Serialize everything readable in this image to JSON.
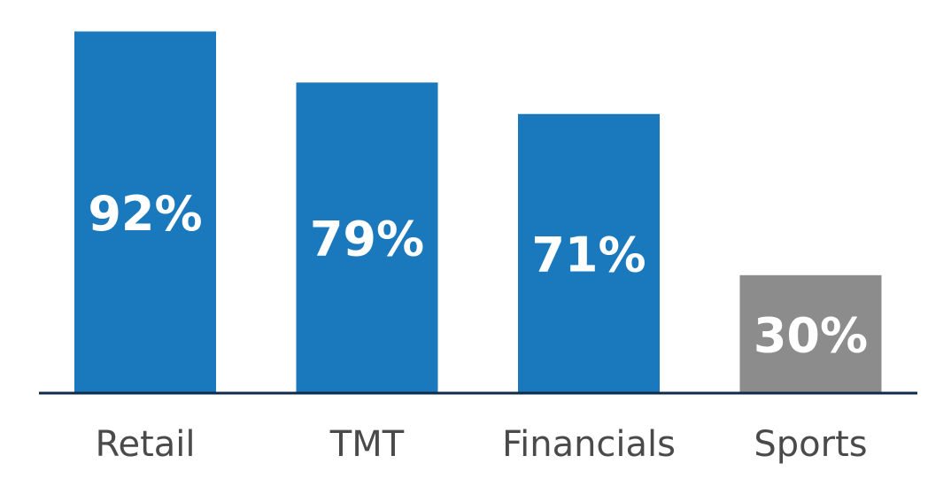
{
  "chart_data": {
    "type": "bar",
    "categories": [
      "Retail",
      "TMT",
      "Financials",
      "Sports"
    ],
    "values": [
      92,
      79,
      71,
      30
    ],
    "value_labels": [
      "92%",
      "79%",
      "71%",
      "30%"
    ],
    "ylim": [
      0,
      100
    ],
    "grid": false,
    "colors": {
      "bars": [
        "#1a79bd",
        "#1a79bd",
        "#1a79bd",
        "#8c8c8c"
      ],
      "baseline": "#0f2a4a"
    }
  }
}
